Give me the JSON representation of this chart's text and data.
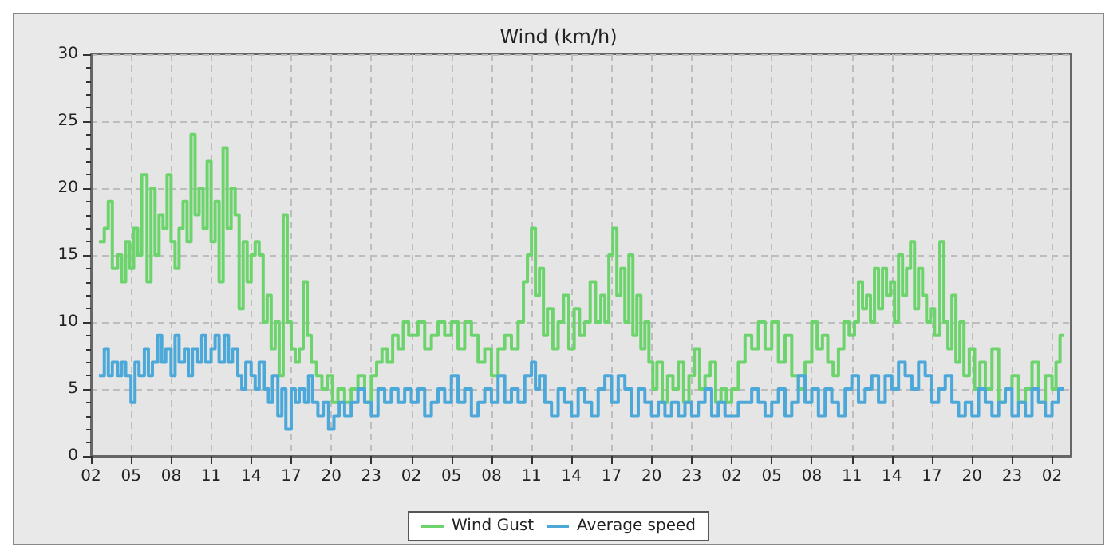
{
  "chart_data": {
    "type": "step",
    "title": "Wind (km/h)",
    "xlim": [
      "--01-01T02:00",
      "--01-04T03:24"
    ],
    "ylim": [
      0,
      30
    ],
    "xticks": [
      {
        "value": "--01-01T02:00",
        "label": "02"
      },
      {
        "value": "--01-01T05:00",
        "label": "05"
      },
      {
        "value": "--01-01T08:00",
        "label": "08"
      },
      {
        "value": "--01-01T11:00",
        "label": "11"
      },
      {
        "value": "--01-01T14:00",
        "label": "14"
      },
      {
        "value": "--01-01T17:00",
        "label": "17"
      },
      {
        "value": "--01-01T20:00",
        "label": "20"
      },
      {
        "value": "--01-01T23:00",
        "label": "23"
      },
      {
        "value": "--01-02T02:00",
        "label": "02"
      },
      {
        "value": "--01-02T05:00",
        "label": "05"
      },
      {
        "value": "--01-02T08:00",
        "label": "08"
      },
      {
        "value": "--01-02T11:00",
        "label": "11"
      },
      {
        "value": "--01-02T14:00",
        "label": "14"
      },
      {
        "value": "--01-02T17:00",
        "label": "17"
      },
      {
        "value": "--01-02T20:00",
        "label": "20"
      },
      {
        "value": "--01-02T23:00",
        "label": "23"
      },
      {
        "value": "--01-03T02:00",
        "label": "02"
      },
      {
        "value": "--01-03T05:00",
        "label": "05"
      },
      {
        "value": "--01-03T08:00",
        "label": "08"
      },
      {
        "value": "--01-03T11:00",
        "label": "11"
      },
      {
        "value": "--01-03T14:00",
        "label": "14"
      },
      {
        "value": "--01-03T17:00",
        "label": "17"
      },
      {
        "value": "--01-03T20:00",
        "label": "20"
      },
      {
        "value": "--01-03T23:00",
        "label": "23"
      },
      {
        "value": "--01-04T02:00",
        "label": "02"
      }
    ],
    "yticks": [
      0,
      5,
      10,
      15,
      20,
      25,
      30
    ],
    "grid": true,
    "legend": "bottom",
    "line_style": "solid",
    "marker": "none",
    "series": [
      {
        "name": "Wind Gust",
        "color": "#6dd46d",
        "x": [
          "--01-01T02:36",
          "--01-01T03:00",
          "--01-01T03:18",
          "--01-01T03:36",
          "--01-01T04:00",
          "--01-01T04:18",
          "--01-01T04:36",
          "--01-01T04:54",
          "--01-01T05:12",
          "--01-01T05:30",
          "--01-01T05:48",
          "--01-01T06:12",
          "--01-01T06:30",
          "--01-01T06:48",
          "--01-01T07:06",
          "--01-01T07:24",
          "--01-01T07:42",
          "--01-01T08:00",
          "--01-01T08:18",
          "--01-01T08:36",
          "--01-01T08:54",
          "--01-01T09:12",
          "--01-01T09:30",
          "--01-01T09:48",
          "--01-01T10:06",
          "--01-01T10:24",
          "--01-01T10:42",
          "--01-01T11:00",
          "--01-01T11:18",
          "--01-01T11:36",
          "--01-01T11:54",
          "--01-01T12:12",
          "--01-01T12:30",
          "--01-01T12:48",
          "--01-01T13:06",
          "--01-01T13:24",
          "--01-01T13:42",
          "--01-01T14:00",
          "--01-01T14:18",
          "--01-01T14:36",
          "--01-01T14:54",
          "--01-01T15:12",
          "--01-01T15:30",
          "--01-01T15:48",
          "--01-01T16:06",
          "--01-01T16:24",
          "--01-01T16:42",
          "--01-01T17:00",
          "--01-01T17:18",
          "--01-01T17:36",
          "--01-01T17:54",
          "--01-01T18:12",
          "--01-01T18:30",
          "--01-01T18:54",
          "--01-01T19:18",
          "--01-01T19:42",
          "--01-01T20:06",
          "--01-01T20:30",
          "--01-01T21:00",
          "--01-01T21:30",
          "--01-01T22:00",
          "--01-01T22:30",
          "--01-01T23:00",
          "--01-01T23:24",
          "--01-01T23:48",
          "--01-02T00:12",
          "--01-02T00:36",
          "--01-02T01:00",
          "--01-02T01:24",
          "--01-02T01:48",
          "--01-02T02:00",
          "--01-02T02:30",
          "--01-02T03:00",
          "--01-02T03:30",
          "--01-02T04:00",
          "--01-02T04:30",
          "--01-02T05:00",
          "--01-02T05:30",
          "--01-02T06:00",
          "--01-02T06:30",
          "--01-02T07:00",
          "--01-02T07:30",
          "--01-02T08:00",
          "--01-02T08:30",
          "--01-02T09:00",
          "--01-02T09:30",
          "--01-02T10:00",
          "--01-02T10:24",
          "--01-02T10:42",
          "--01-02T11:00",
          "--01-02T11:18",
          "--01-02T11:36",
          "--01-02T11:54",
          "--01-02T12:12",
          "--01-02T12:36",
          "--01-02T13:00",
          "--01-02T13:24",
          "--01-02T13:48",
          "--01-02T14:12",
          "--01-02T14:36",
          "--01-02T15:00",
          "--01-02T15:24",
          "--01-02T15:48",
          "--01-02T16:12",
          "--01-02T16:30",
          "--01-02T16:48",
          "--01-02T17:06",
          "--01-02T17:24",
          "--01-02T17:42",
          "--01-02T18:00",
          "--01-02T18:18",
          "--01-02T18:36",
          "--01-02T18:54",
          "--01-02T19:12",
          "--01-02T19:30",
          "--01-02T19:48",
          "--01-02T20:06",
          "--01-02T20:24",
          "--01-02T20:48",
          "--01-02T21:12",
          "--01-02T21:36",
          "--01-02T22:00",
          "--01-02T22:24",
          "--01-02T22:48",
          "--01-02T23:12",
          "--01-02T23:36",
          "--01-03T00:00",
          "--01-03T00:24",
          "--01-03T00:48",
          "--01-03T01:12",
          "--01-03T01:36",
          "--01-03T02:00",
          "--01-03T02:30",
          "--01-03T03:00",
          "--01-03T03:30",
          "--01-03T04:00",
          "--01-03T04:30",
          "--01-03T05:00",
          "--01-03T05:30",
          "--01-03T06:00",
          "--01-03T06:30",
          "--01-03T07:00",
          "--01-03T07:30",
          "--01-03T08:00",
          "--01-03T08:24",
          "--01-03T08:48",
          "--01-03T09:12",
          "--01-03T09:36",
          "--01-03T10:00",
          "--01-03T10:24",
          "--01-03T10:48",
          "--01-03T11:12",
          "--01-03T11:30",
          "--01-03T11:48",
          "--01-03T12:06",
          "--01-03T12:24",
          "--01-03T12:42",
          "--01-03T13:00",
          "--01-03T13:18",
          "--01-03T13:36",
          "--01-03T13:54",
          "--01-03T14:12",
          "--01-03T14:30",
          "--01-03T14:48",
          "--01-03T15:06",
          "--01-03T15:24",
          "--01-03T15:42",
          "--01-03T16:00",
          "--01-03T16:18",
          "--01-03T16:36",
          "--01-03T16:54",
          "--01-03T17:12",
          "--01-03T17:36",
          "--01-03T17:54",
          "--01-03T18:12",
          "--01-03T18:30",
          "--01-03T18:48",
          "--01-03T19:06",
          "--01-03T19:24",
          "--01-03T19:48",
          "--01-03T20:12",
          "--01-03T20:36",
          "--01-03T21:00",
          "--01-03T21:30",
          "--01-03T22:00",
          "--01-03T22:30",
          "--01-03T23:00",
          "--01-03T23:30",
          "--01-04T00:00",
          "--01-04T00:30",
          "--01-04T01:00",
          "--01-04T01:30",
          "--01-04T02:00",
          "--01-04T02:18",
          "--01-04T02:36",
          "--01-04T02:54"
        ],
        "values": [
          16,
          17,
          19,
          14,
          15,
          13,
          16,
          14,
          17,
          15,
          21,
          13,
          20,
          15,
          18,
          17,
          21,
          16,
          14,
          17,
          19,
          16,
          24,
          18,
          20,
          17,
          22,
          16,
          19,
          13,
          23,
          17,
          20,
          18,
          11,
          16,
          13,
          15,
          16,
          15,
          10,
          12,
          8,
          10,
          6,
          18,
          10,
          8,
          7,
          8,
          13,
          9,
          7,
          6,
          5,
          6,
          4,
          5,
          4,
          5,
          6,
          4,
          6,
          7,
          8,
          7,
          9,
          8,
          10,
          9,
          9,
          10,
          8,
          9,
          10,
          9,
          10,
          8,
          10,
          9,
          7,
          8,
          6,
          8,
          9,
          8,
          10,
          13,
          15,
          17,
          12,
          14,
          9,
          11,
          8,
          10,
          12,
          8,
          11,
          9,
          10,
          13,
          10,
          12,
          10,
          15,
          17,
          12,
          14,
          10,
          15,
          9,
          12,
          8,
          10,
          7,
          5,
          7,
          4,
          6,
          5,
          7,
          4,
          6,
          8,
          5,
          6,
          7,
          4,
          5,
          4,
          5,
          7,
          9,
          8,
          10,
          8,
          10,
          7,
          9,
          6,
          5,
          7,
          10,
          8,
          9,
          7,
          6,
          8,
          10,
          9,
          10,
          13,
          11,
          12,
          10,
          14,
          11,
          14,
          12,
          13,
          10,
          15,
          12,
          14,
          16,
          11,
          14,
          12,
          10,
          11,
          9,
          16,
          10,
          8,
          12,
          7,
          10,
          6,
          8,
          5,
          7,
          5,
          8,
          4,
          5,
          6,
          4,
          5,
          7,
          4,
          6,
          5,
          7,
          9,
          9
        ]
      },
      {
        "name": "Average speed",
        "color": "#4ba8d8",
        "x": [
          "--01-01T02:36",
          "--01-01T03:00",
          "--01-01T03:18",
          "--01-01T03:36",
          "--01-01T04:00",
          "--01-01T04:18",
          "--01-01T04:36",
          "--01-01T05:00",
          "--01-01T05:18",
          "--01-01T05:36",
          "--01-01T06:00",
          "--01-01T06:18",
          "--01-01T06:36",
          "--01-01T07:00",
          "--01-01T07:18",
          "--01-01T07:36",
          "--01-01T08:00",
          "--01-01T08:18",
          "--01-01T08:36",
          "--01-01T09:00",
          "--01-01T09:18",
          "--01-01T09:36",
          "--01-01T10:00",
          "--01-01T10:18",
          "--01-01T10:36",
          "--01-01T11:00",
          "--01-01T11:18",
          "--01-01T11:36",
          "--01-01T12:00",
          "--01-01T12:18",
          "--01-01T12:36",
          "--01-01T13:00",
          "--01-01T13:18",
          "--01-01T13:36",
          "--01-01T14:00",
          "--01-01T14:18",
          "--01-01T14:36",
          "--01-01T15:00",
          "--01-01T15:18",
          "--01-01T15:36",
          "--01-01T16:00",
          "--01-01T16:18",
          "--01-01T16:36",
          "--01-01T17:00",
          "--01-01T17:18",
          "--01-01T17:36",
          "--01-01T18:00",
          "--01-01T18:18",
          "--01-01T18:36",
          "--01-01T19:00",
          "--01-01T19:24",
          "--01-01T19:48",
          "--01-01T20:12",
          "--01-01T20:36",
          "--01-01T21:00",
          "--01-01T21:30",
          "--01-01T22:00",
          "--01-01T22:30",
          "--01-01T23:00",
          "--01-01T23:30",
          "--01-02T00:00",
          "--01-02T00:30",
          "--01-02T01:00",
          "--01-02T01:30",
          "--01-02T02:00",
          "--01-02T02:30",
          "--01-02T03:00",
          "--01-02T03:30",
          "--01-02T04:00",
          "--01-02T04:30",
          "--01-02T05:00",
          "--01-02T05:30",
          "--01-02T06:00",
          "--01-02T06:30",
          "--01-02T07:00",
          "--01-02T07:30",
          "--01-02T08:00",
          "--01-02T08:30",
          "--01-02T09:00",
          "--01-02T09:30",
          "--01-02T10:00",
          "--01-02T10:30",
          "--01-02T11:00",
          "--01-02T11:18",
          "--01-02T11:36",
          "--01-02T12:00",
          "--01-02T12:30",
          "--01-02T13:00",
          "--01-02T13:30",
          "--01-02T14:00",
          "--01-02T14:30",
          "--01-02T15:00",
          "--01-02T15:30",
          "--01-02T16:00",
          "--01-02T16:30",
          "--01-02T17:00",
          "--01-02T17:30",
          "--01-02T18:00",
          "--01-02T18:30",
          "--01-02T19:00",
          "--01-02T19:30",
          "--01-02T20:00",
          "--01-02T20:30",
          "--01-02T21:00",
          "--01-02T21:30",
          "--01-02T22:00",
          "--01-02T22:30",
          "--01-02T23:00",
          "--01-02T23:30",
          "--01-03T00:00",
          "--01-03T00:30",
          "--01-03T01:00",
          "--01-03T01:30",
          "--01-03T02:00",
          "--01-03T02:30",
          "--01-03T03:00",
          "--01-03T03:30",
          "--01-03T04:00",
          "--01-03T04:30",
          "--01-03T05:00",
          "--01-03T05:30",
          "--01-03T06:00",
          "--01-03T06:30",
          "--01-03T07:00",
          "--01-03T07:30",
          "--01-03T08:00",
          "--01-03T08:30",
          "--01-03T09:00",
          "--01-03T09:30",
          "--01-03T10:00",
          "--01-03T10:30",
          "--01-03T11:00",
          "--01-03T11:30",
          "--01-03T12:00",
          "--01-03T12:30",
          "--01-03T13:00",
          "--01-03T13:30",
          "--01-03T14:00",
          "--01-03T14:30",
          "--01-03T15:00",
          "--01-03T15:30",
          "--01-03T16:00",
          "--01-03T16:30",
          "--01-03T17:00",
          "--01-03T17:30",
          "--01-03T18:00",
          "--01-03T18:30",
          "--01-03T19:00",
          "--01-03T19:30",
          "--01-03T20:00",
          "--01-03T20:30",
          "--01-03T21:00",
          "--01-03T21:30",
          "--01-03T22:00",
          "--01-03T22:30",
          "--01-03T23:00",
          "--01-03T23:30",
          "--01-04T00:00",
          "--01-04T00:30",
          "--01-04T01:00",
          "--01-04T01:30",
          "--01-04T02:00",
          "--01-04T02:30",
          "--01-04T02:54"
        ],
        "values": [
          6,
          8,
          6,
          7,
          6,
          7,
          6,
          4,
          7,
          6,
          8,
          6,
          7,
          9,
          7,
          8,
          6,
          9,
          7,
          8,
          6,
          8,
          7,
          9,
          7,
          8,
          9,
          7,
          9,
          7,
          8,
          6,
          5,
          7,
          6,
          5,
          7,
          5,
          4,
          6,
          3,
          5,
          2,
          5,
          4,
          5,
          4,
          6,
          4,
          3,
          4,
          2,
          3,
          4,
          3,
          4,
          5,
          4,
          3,
          5,
          4,
          5,
          4,
          5,
          4,
          5,
          3,
          4,
          5,
          4,
          6,
          4,
          5,
          3,
          4,
          5,
          4,
          6,
          4,
          5,
          4,
          6,
          7,
          5,
          6,
          4,
          3,
          5,
          4,
          3,
          5,
          4,
          3,
          5,
          6,
          4,
          6,
          5,
          3,
          5,
          4,
          3,
          4,
          3,
          4,
          3,
          4,
          3,
          4,
          5,
          3,
          4,
          3,
          3,
          4,
          4,
          5,
          4,
          3,
          4,
          5,
          3,
          4,
          6,
          4,
          5,
          3,
          5,
          4,
          3,
          5,
          6,
          4,
          5,
          6,
          4,
          6,
          5,
          7,
          6,
          5,
          7,
          6,
          4,
          5,
          6,
          4,
          3,
          4,
          3,
          5,
          4,
          3,
          4,
          5,
          3,
          4,
          3,
          5,
          4,
          3,
          4,
          5,
          5
        ]
      }
    ]
  }
}
